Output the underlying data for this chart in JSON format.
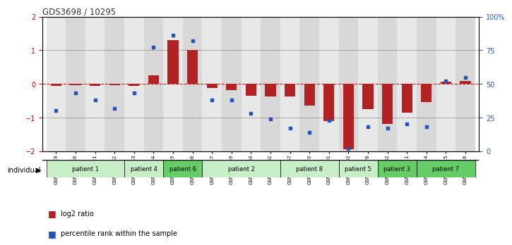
{
  "title": "GDS3698 / 10295",
  "samples": [
    "GSM279949",
    "GSM279950",
    "GSM279951",
    "GSM279952",
    "GSM279953",
    "GSM279954",
    "GSM279955",
    "GSM279956",
    "GSM279957",
    "GSM279959",
    "GSM279960",
    "GSM279962",
    "GSM279967",
    "GSM279970",
    "GSM279991",
    "GSM279992",
    "GSM279976",
    "GSM279982",
    "GSM280011",
    "GSM280014",
    "GSM280015",
    "GSM280016"
  ],
  "log2_ratio": [
    -0.07,
    -0.05,
    -0.06,
    -0.04,
    -0.07,
    0.25,
    1.3,
    1.0,
    -0.12,
    -0.18,
    -0.35,
    -0.38,
    -0.38,
    -0.65,
    -1.1,
    -1.95,
    -0.75,
    -1.2,
    -0.85,
    -0.55,
    0.07,
    0.08
  ],
  "percentile": [
    30,
    43,
    38,
    32,
    43,
    77,
    86,
    82,
    38,
    38,
    28,
    24,
    17,
    14,
    23,
    2,
    18,
    17,
    20,
    18,
    52,
    55
  ],
  "patients": [
    {
      "label": "patient 1",
      "start": 0,
      "end": 4,
      "color": "#c8eec8"
    },
    {
      "label": "patient 4",
      "start": 4,
      "end": 6,
      "color": "#c8eec8"
    },
    {
      "label": "patient 6",
      "start": 6,
      "end": 8,
      "color": "#66cc66"
    },
    {
      "label": "patient 2",
      "start": 8,
      "end": 12,
      "color": "#c8eec8"
    },
    {
      "label": "patient 8",
      "start": 12,
      "end": 15,
      "color": "#c8eec8"
    },
    {
      "label": "patient 5",
      "start": 15,
      "end": 17,
      "color": "#c8eec8"
    },
    {
      "label": "patient 3",
      "start": 17,
      "end": 19,
      "color": "#66cc66"
    },
    {
      "label": "patient 7",
      "start": 19,
      "end": 22,
      "color": "#66cc66"
    }
  ],
  "bar_color_red": "#b22222",
  "dot_color_blue": "#2255bb",
  "zero_line_color": "#cc0000",
  "bg_color": "#ffffff",
  "col_bg_even": "#e8e8e8",
  "col_bg_odd": "#d8d8d8",
  "ylim": [
    -2.0,
    2.0
  ],
  "y2lim": [
    0,
    100
  ],
  "yticks": [
    -2,
    -1,
    0,
    1,
    2
  ],
  "y2ticks": [
    0,
    25,
    50,
    75,
    100
  ],
  "dotted_lines": [
    1.0,
    -1.0
  ]
}
